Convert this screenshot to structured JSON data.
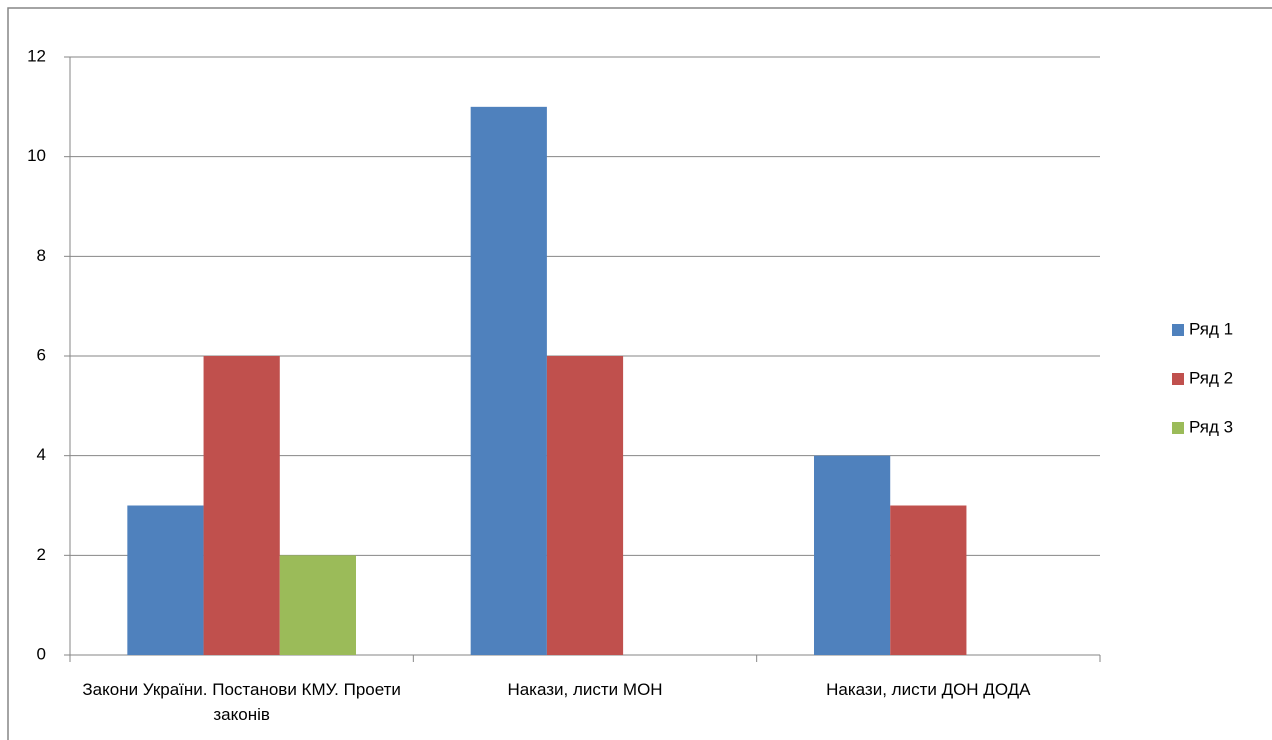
{
  "chart_data": {
    "type": "bar",
    "categories": [
      "Закони України. Постанови КМУ.  Проети законів",
      "Накази, листи МОН",
      "Накази, листи ДОН ДОДА"
    ],
    "series": [
      {
        "name": "Ряд 1",
        "color": "#4f81bd",
        "values": [
          3,
          11,
          4
        ]
      },
      {
        "name": "Ряд 2",
        "color": "#c0504d",
        "values": [
          6,
          6,
          3
        ]
      },
      {
        "name": "Ряд 3",
        "color": "#9bbb59",
        "values": [
          2,
          null,
          null
        ]
      }
    ],
    "ylim": [
      0,
      12
    ],
    "yticks": [
      0,
      2,
      4,
      6,
      8,
      10,
      12
    ],
    "grid": true,
    "legend": "right"
  }
}
